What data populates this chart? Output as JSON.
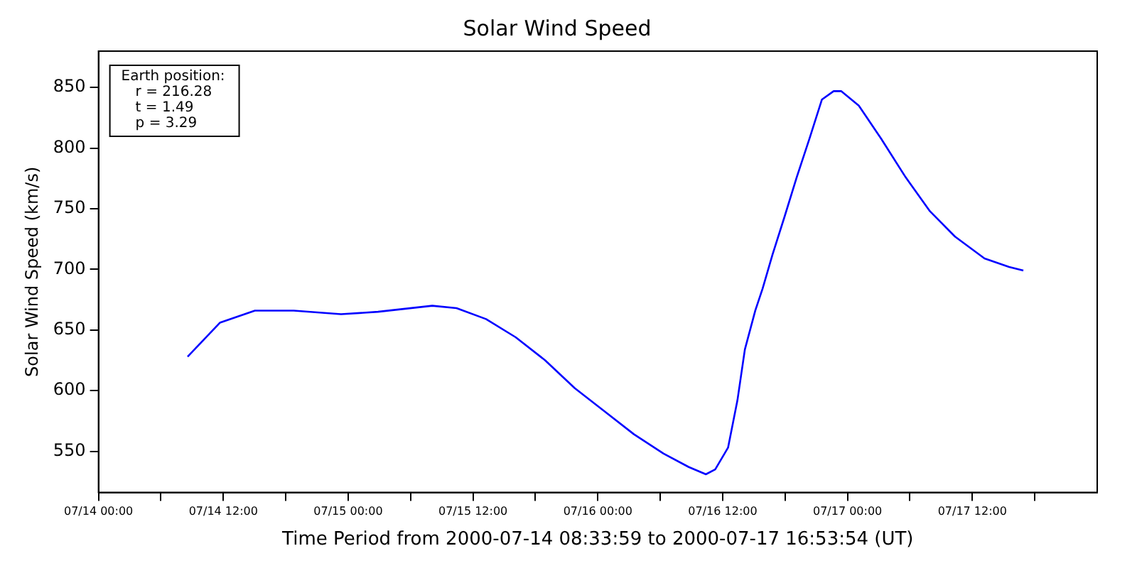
{
  "chart_data": {
    "type": "line",
    "title": "Solar Wind Speed",
    "xlabel": "Time Period from 2000-07-14 08:33:59 to 2000-07-17 16:53:54 (UT)",
    "ylabel": "Solar Wind Speed (km/s)",
    "x": [
      "2000-07-14T08:34",
      "2000-07-14T11:40",
      "2000-07-14T15:02",
      "2000-07-14T18:46",
      "2000-07-14T23:19",
      "2000-07-15T02:52",
      "2000-07-15T08:05",
      "2000-07-15T10:25",
      "2000-07-15T13:15",
      "2000-07-15T16:06",
      "2000-07-15T18:56",
      "2000-07-15T21:47",
      "2000-07-16T00:38",
      "2000-07-16T03:28",
      "2000-07-16T06:19",
      "2000-07-16T08:44",
      "2000-07-16T10:23",
      "2000-07-16T11:17",
      "2000-07-16T12:31",
      "2000-07-16T13:25",
      "2000-07-16T14:08",
      "2000-07-16T15:08",
      "2000-07-16T15:50",
      "2000-07-16T16:47",
      "2000-07-16T17:58",
      "2000-07-16T19:07",
      "2000-07-16T20:21",
      "2000-07-16T21:32",
      "2000-07-16T22:40",
      "2000-07-16T23:23",
      "2000-07-17T01:05",
      "2000-07-17T03:13",
      "2000-07-17T05:35",
      "2000-07-17T07:55",
      "2000-07-17T10:20",
      "2000-07-17T13:10",
      "2000-07-17T15:32",
      "2000-07-17T16:54"
    ],
    "series": [
      {
        "color": "#0000ff",
        "values": [
          628,
          656,
          666,
          666,
          663,
          665,
          670,
          668,
          659,
          644,
          625,
          602,
          583,
          564,
          548,
          537,
          531,
          535,
          553,
          592,
          634,
          666,
          684,
          712,
          744,
          776,
          808,
          840,
          847,
          847,
          835,
          808,
          776,
          748,
          727,
          709,
          702,
          699
        ]
      }
    ],
    "xlim": [
      "2000-07-14T00:00",
      "2000-07-18T00:00"
    ],
    "xticks": [
      {
        "value": "2000-07-14T00:00",
        "label": "07/14 00:00"
      },
      {
        "value": "2000-07-14T06:00",
        "label": null
      },
      {
        "value": "2000-07-14T12:00",
        "label": "07/14 12:00"
      },
      {
        "value": "2000-07-14T18:00",
        "label": null
      },
      {
        "value": "2000-07-15T00:00",
        "label": "07/15 00:00"
      },
      {
        "value": "2000-07-15T06:00",
        "label": null
      },
      {
        "value": "2000-07-15T12:00",
        "label": "07/15 12:00"
      },
      {
        "value": "2000-07-15T18:00",
        "label": null
      },
      {
        "value": "2000-07-16T00:00",
        "label": "07/16 00:00"
      },
      {
        "value": "2000-07-16T06:00",
        "label": null
      },
      {
        "value": "2000-07-16T12:00",
        "label": "07/16 12:00"
      },
      {
        "value": "2000-07-16T18:00",
        "label": null
      },
      {
        "value": "2000-07-17T00:00",
        "label": "07/17 00:00"
      },
      {
        "value": "2000-07-17T06:00",
        "label": null
      },
      {
        "value": "2000-07-17T12:00",
        "label": "07/17 12:00"
      },
      {
        "value": "2000-07-17T18:00",
        "label": null
      }
    ],
    "ylim": [
      516,
      880
    ],
    "yticks": [
      550,
      600,
      650,
      700,
      750,
      800,
      850
    ],
    "grid": false,
    "legend": false,
    "marker": "none",
    "line_style": "solid",
    "annotations": [
      "Earth position:",
      "r = 216.28",
      "t = 1.49",
      "p = 3.29"
    ]
  }
}
